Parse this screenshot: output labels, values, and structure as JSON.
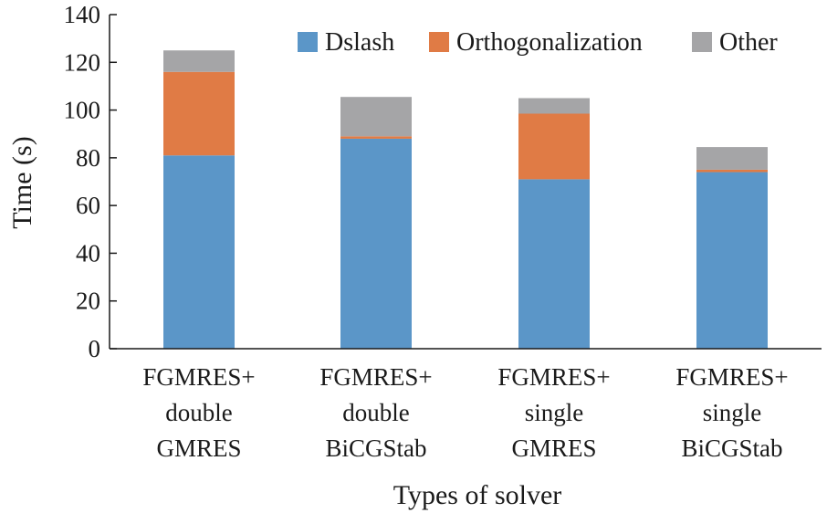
{
  "chart_data": {
    "type": "bar",
    "stacked": true,
    "categories": [
      [
        "FGMRES+",
        "double",
        "GMRES"
      ],
      [
        "FGMRES+",
        "double",
        "BiCGStab"
      ],
      [
        "FGMRES+",
        "single",
        "GMRES"
      ],
      [
        "FGMRES+",
        "single",
        "BiCGStab"
      ]
    ],
    "series": [
      {
        "name": "Dslash",
        "color": "#5b96c8",
        "values": [
          81,
          88,
          71,
          74
        ]
      },
      {
        "name": "Orthogonalization",
        "color": "#e07b45",
        "values": [
          35,
          1,
          27.5,
          1
        ]
      },
      {
        "name": "Other",
        "color": "#a5a5a7",
        "values": [
          9,
          16.5,
          6.5,
          9.5
        ]
      }
    ],
    "xlabel": "Types of solver",
    "ylabel": "Time (s)",
    "ylim": [
      0,
      140
    ],
    "yticks": [
      0,
      20,
      40,
      60,
      80,
      100,
      120,
      140
    ],
    "grid": false,
    "legend_position": "top-right"
  }
}
